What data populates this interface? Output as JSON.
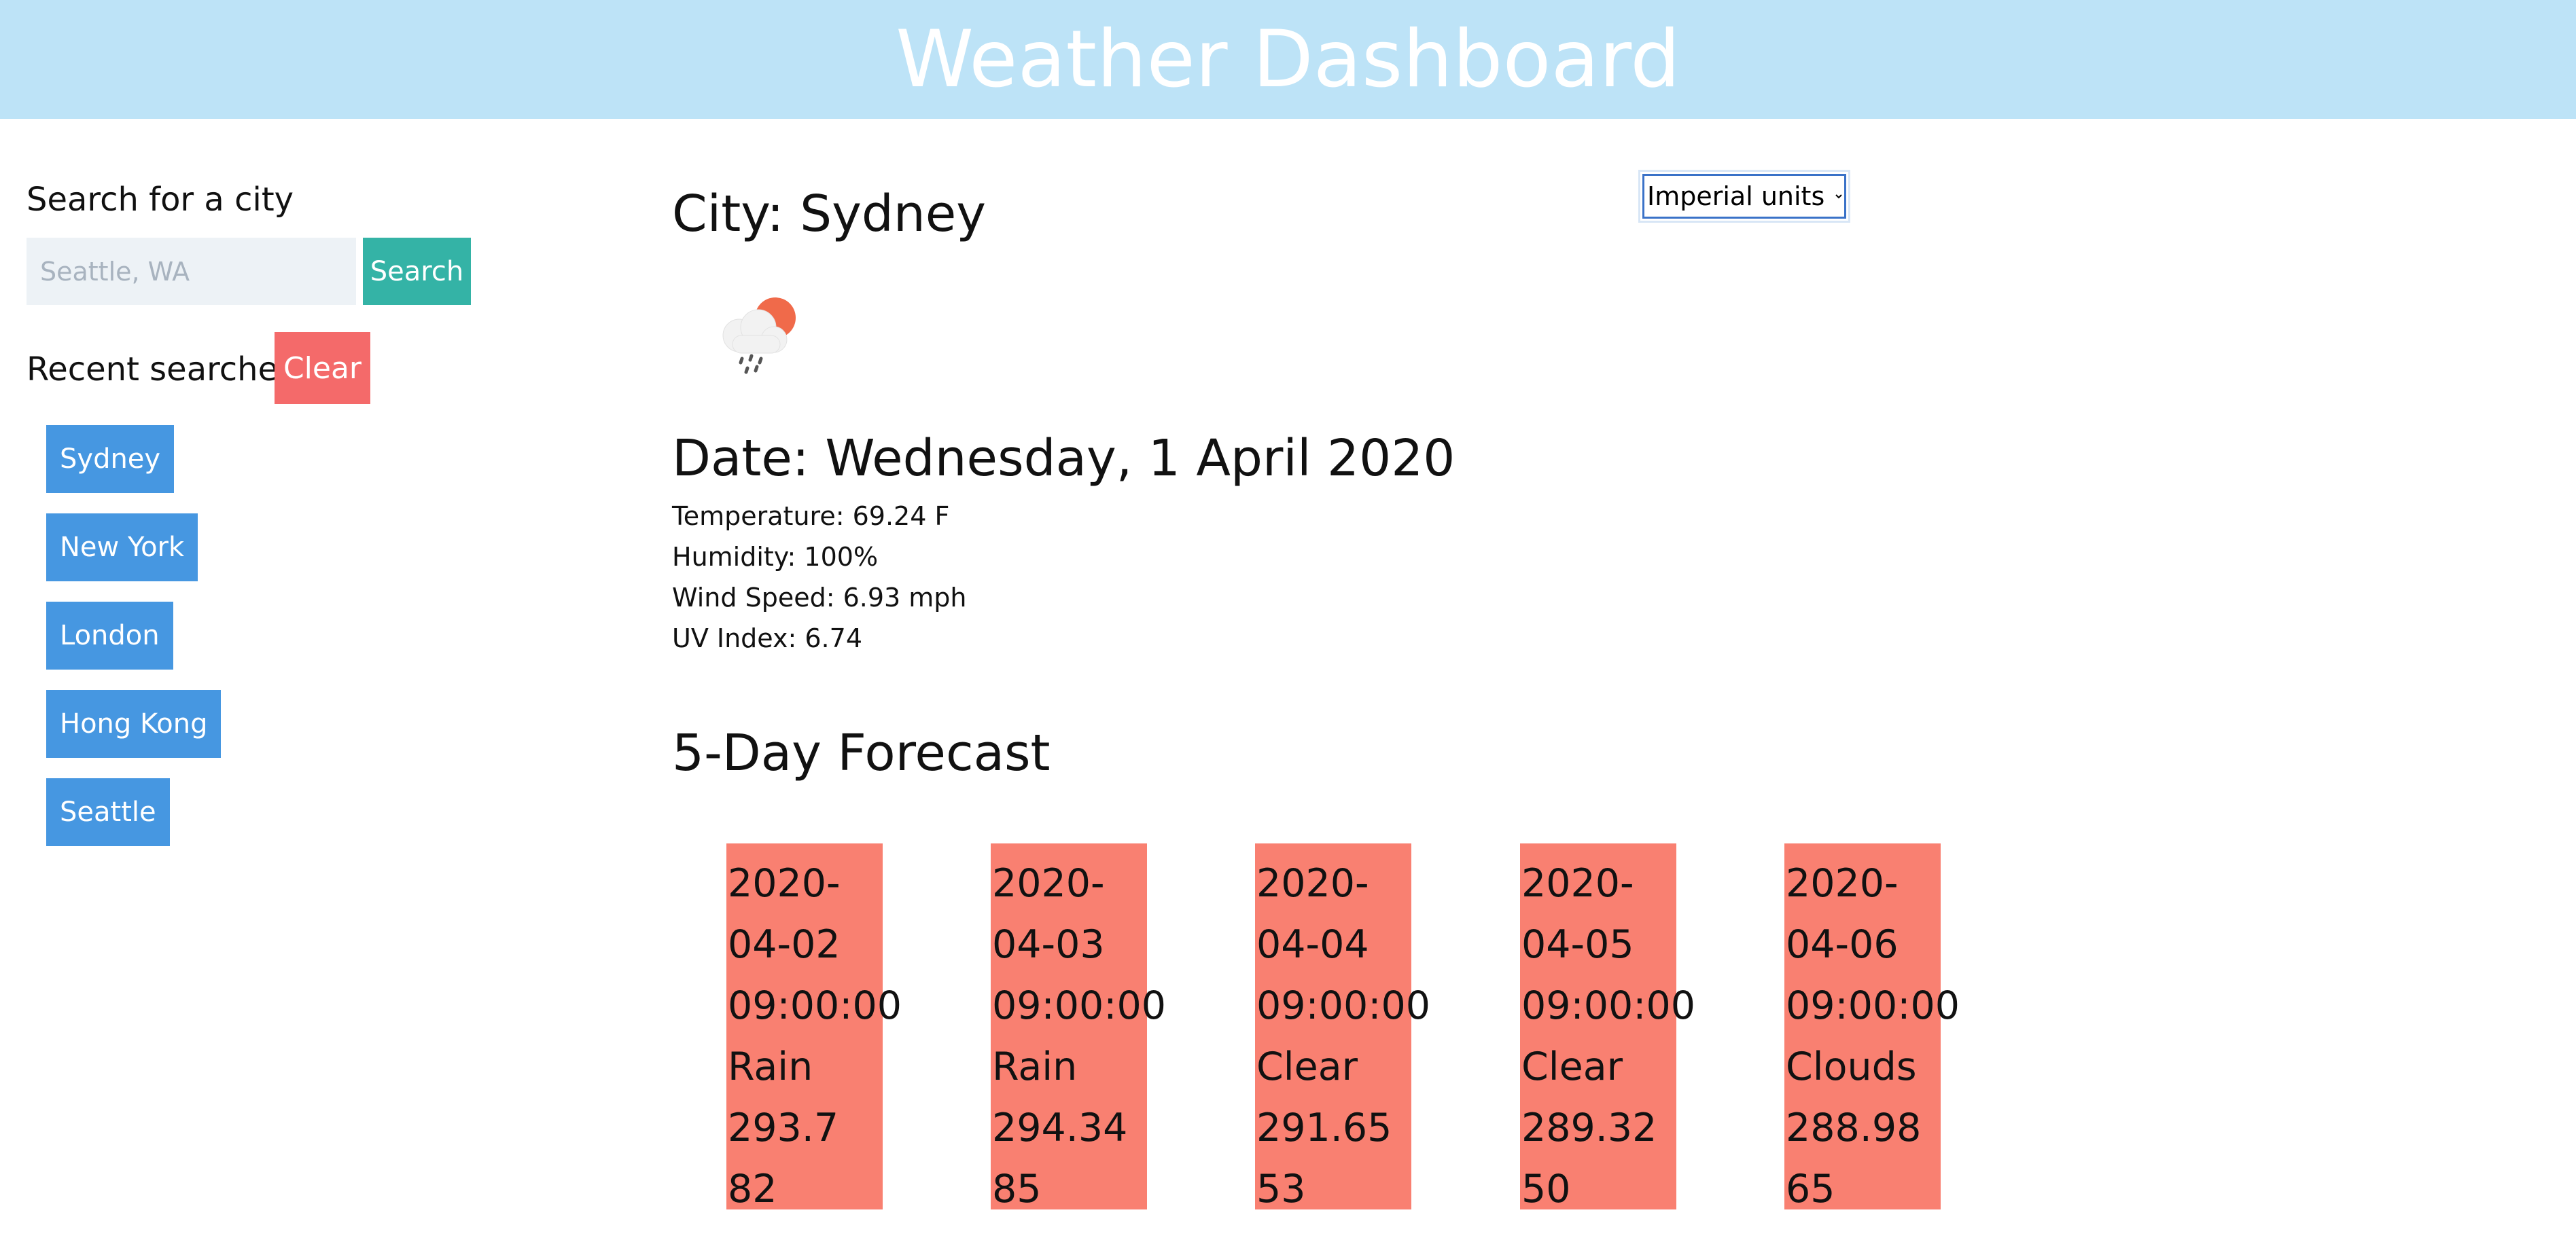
{
  "header": {
    "title": "Weather Dashboard"
  },
  "sidebar": {
    "search_label": "Search for a city",
    "search_placeholder": "Seattle, WA",
    "search_value": "",
    "search_button": "Search",
    "recent_label": "Recent searches",
    "clear_button": "Clear",
    "recent": [
      "Sydney",
      "New York",
      "London",
      "Hong Kong",
      "Seattle"
    ]
  },
  "main": {
    "units": {
      "selected": "Imperial units"
    },
    "city_title": "City: Sydney",
    "icon": "rain-cloud-sun-icon",
    "date_title": "Date: Wednesday, 1 April 2020",
    "stats": {
      "temperature": "Temperature: 69.24 F",
      "humidity": "Humidity: 100%",
      "wind": "Wind Speed: 6.93 mph",
      "uv": "UV Index: 6.74"
    },
    "forecast_title": "5-Day Forecast",
    "forecast": [
      {
        "date": "2020-",
        "date2": "04-02",
        "time": "09:00:00",
        "condition": "Rain",
        "temp": "293.7",
        "humidity": "82"
      },
      {
        "date": "2020-",
        "date2": "04-03",
        "time": "09:00:00",
        "condition": "Rain",
        "temp": "294.34",
        "humidity": "85"
      },
      {
        "date": "2020-",
        "date2": "04-04",
        "time": "09:00:00",
        "condition": "Clear",
        "temp": "291.65",
        "humidity": "53"
      },
      {
        "date": "2020-",
        "date2": "04-05",
        "time": "09:00:00",
        "condition": "Clear",
        "temp": "289.32",
        "humidity": "50"
      },
      {
        "date": "2020-",
        "date2": "04-06",
        "time": "09:00:00",
        "condition": "Clouds",
        "temp": "288.98",
        "humidity": "65"
      }
    ]
  },
  "colors": {
    "header_bg": "#bde3f7",
    "search_button": "#34b3a6",
    "clear_button": "#f46a6a",
    "city_button": "#4697e1",
    "forecast_card": "#f98071"
  }
}
